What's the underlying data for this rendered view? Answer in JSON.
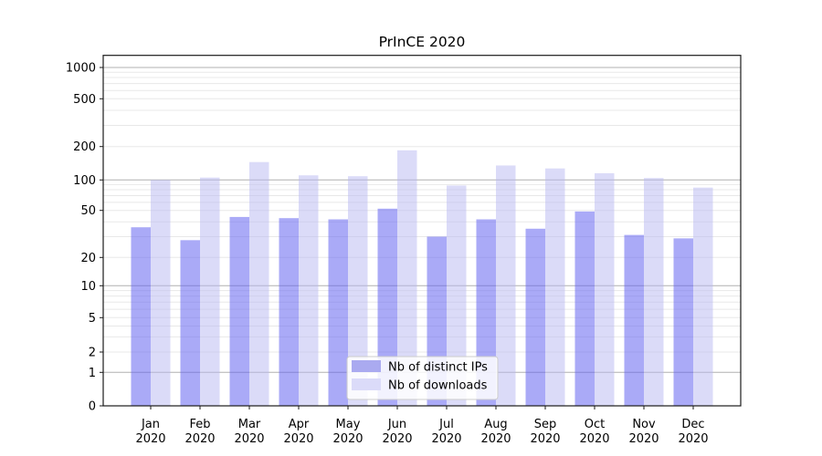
{
  "title": "PrInCE 2020",
  "chart_data": {
    "type": "bar",
    "title": "PrInCE 2020",
    "categories": [
      "Jan",
      "Feb",
      "Mar",
      "Apr",
      "May",
      "Jun",
      "Jul",
      "Aug",
      "Sep",
      "Oct",
      "Nov",
      "Dec"
    ],
    "year_label": "2020",
    "series": [
      {
        "name": "Nb of distinct IPs",
        "bar_color": "rgba(100,100,240,0.55)",
        "legend_color": "#aaaaf0",
        "values": [
          36,
          28,
          44,
          43,
          42,
          52,
          30,
          42,
          35,
          49,
          31,
          29
        ]
      },
      {
        "name": "Nb of downloads",
        "bar_color": "rgba(183,183,241,0.5)",
        "legend_color": "#dbdbf9",
        "values": [
          100,
          105,
          145,
          110,
          108,
          185,
          88,
          135,
          127,
          115,
          104,
          84
        ]
      }
    ],
    "y_ticks": [
      0,
      1,
      2,
      5,
      10,
      20,
      50,
      100,
      200,
      500,
      1000
    ],
    "y_scale": "symlog-1-2-5",
    "ylim": [
      0,
      1150
    ],
    "xlabel": "",
    "ylabel": "",
    "grid": true,
    "legend_position": "lower-center",
    "colors": {
      "major_grid": "#b0b0b0",
      "minor_grid": "#e8e8e8",
      "axis": "#1a1a1a",
      "legend_border": "#cccccc",
      "legend_bg": "rgba(255,255,255,0.85)"
    }
  }
}
